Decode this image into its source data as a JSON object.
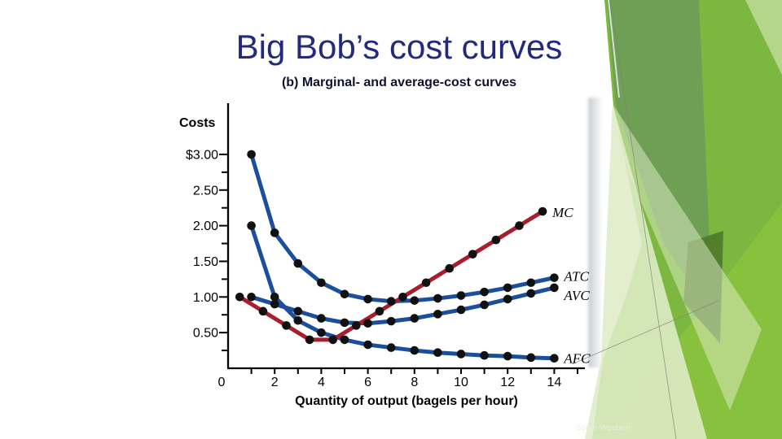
{
  "slide": {
    "title": "Big Bob’s cost curves",
    "footer_text": "South-Western",
    "colors": {
      "title_navy": "#212a7d",
      "subtitle_navy": "#10112e",
      "curve_blue": "#1b4f9e",
      "curve_red": "#a91e2d",
      "marker_black": "#111111",
      "accent_green_bright": "#7cb83f",
      "accent_green_sage": "#6f9e55",
      "accent_green_dark": "#527f2d",
      "accent_green_pale": "#dce9c3"
    }
  },
  "chart_data": {
    "type": "line",
    "title": "(b) Marginal- and average-cost curves",
    "xlabel": "Quantity of output (bagels per hour)",
    "ylabel": "Costs",
    "xlim": [
      0,
      15.3
    ],
    "ylim": [
      0,
      3.45
    ],
    "grid": false,
    "legend_position": "end-of-line-labels",
    "xtick_values": [
      0,
      2,
      4,
      6,
      8,
      10,
      12,
      14
    ],
    "xtick_labels": [
      "0",
      "2",
      "4",
      "6",
      "8",
      "10",
      "12",
      "14"
    ],
    "xtick_minor_step": 1,
    "ytick_values": [
      3.0,
      2.5,
      2.0,
      1.5,
      1.0,
      0.5
    ],
    "ytick_labels": [
      "$3.00",
      "2.50",
      "2.00",
      "1.50",
      "1.00",
      "0.50"
    ],
    "ytick_minor_step": 0.25,
    "series": [
      {
        "name": "MC",
        "color": "#a91e2d",
        "x": [
          0.5,
          1.5,
          2.5,
          3.5,
          4.5,
          5.5,
          6.5,
          7.5,
          8.5,
          9.5,
          10.5,
          11.5,
          12.5,
          13.5
        ],
        "y": [
          1.0,
          0.8,
          0.6,
          0.4,
          0.4,
          0.6,
          0.8,
          1.0,
          1.2,
          1.4,
          1.6,
          1.8,
          2.0,
          2.2
        ]
      },
      {
        "name": "ATC",
        "color": "#1b4f9e",
        "x": [
          1,
          2,
          3,
          4,
          5,
          6,
          7,
          8,
          9,
          10,
          11,
          12,
          13,
          14
        ],
        "y": [
          3.0,
          1.9,
          1.47,
          1.2,
          1.04,
          0.97,
          0.94,
          0.95,
          0.98,
          1.02,
          1.07,
          1.13,
          1.2,
          1.27
        ]
      },
      {
        "name": "AVC",
        "color": "#1b4f9e",
        "x": [
          1,
          2,
          3,
          4,
          5,
          6,
          7,
          8,
          9,
          10,
          11,
          12,
          13,
          14
        ],
        "y": [
          1.0,
          0.9,
          0.8,
          0.7,
          0.64,
          0.63,
          0.66,
          0.7,
          0.76,
          0.82,
          0.89,
          0.97,
          1.05,
          1.13
        ]
      },
      {
        "name": "AFC",
        "color": "#1b4f9e",
        "x": [
          1,
          2,
          3,
          4,
          5,
          6,
          7,
          8,
          9,
          10,
          11,
          12,
          13,
          14
        ],
        "y": [
          2.0,
          1.0,
          0.67,
          0.5,
          0.4,
          0.33,
          0.29,
          0.25,
          0.22,
          0.2,
          0.18,
          0.17,
          0.15,
          0.14
        ]
      }
    ],
    "marker": {
      "shape": "circle",
      "color": "#111111"
    }
  }
}
